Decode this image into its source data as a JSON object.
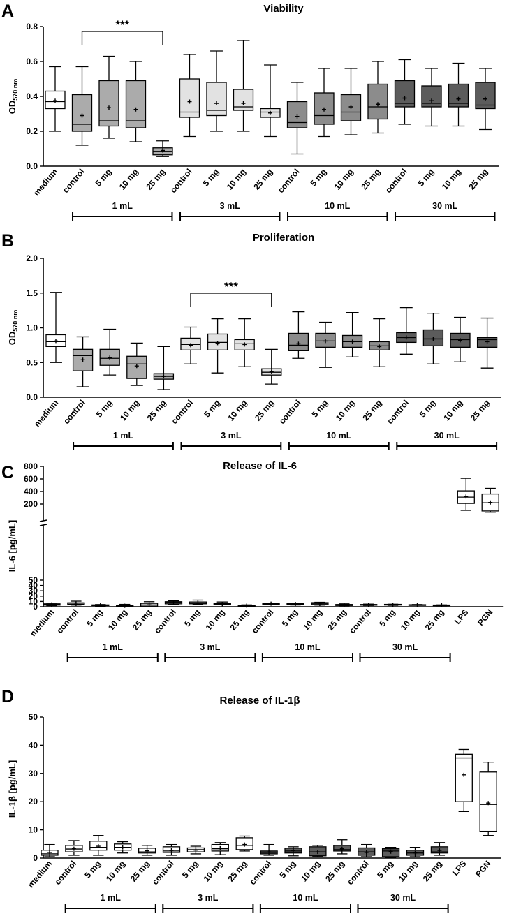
{
  "chart_data": [
    {
      "type": "boxplot",
      "panel_label": "A",
      "title": "Viability",
      "ylabel_main": "OD",
      "ylabel_sub": "570 nm",
      "ylim": [
        0,
        0.8
      ],
      "yticks": [
        "0.0",
        "0.2",
        "0.4",
        "0.6",
        "0.8"
      ],
      "categories": [
        "medium",
        "control",
        "5 mg",
        "10 mg",
        "25 mg",
        "control",
        "5 mg",
        "10 mg",
        "25 mg",
        "control",
        "5 mg",
        "10 mg",
        "25 mg",
        "control",
        "5 mg",
        "10 mg",
        "25 mg"
      ],
      "groups": [
        {
          "label": "1 mL",
          "from": 1,
          "to": 4
        },
        {
          "label": "3 mL",
          "from": 5,
          "to": 8
        },
        {
          "label": "10 mL",
          "from": 9,
          "to": 12
        },
        {
          "label": "30 mL",
          "from": 13,
          "to": 16
        }
      ],
      "significance": [
        {
          "from": 1,
          "to": 4,
          "label": "***"
        }
      ],
      "boxes": [
        {
          "min": 0.2,
          "q1": 0.33,
          "median": 0.37,
          "q3": 0.43,
          "max": 0.57,
          "mean": 0.375
        },
        {
          "min": 0.12,
          "q1": 0.2,
          "median": 0.24,
          "q3": 0.41,
          "max": 0.57,
          "mean": 0.29
        },
        {
          "min": 0.16,
          "q1": 0.23,
          "median": 0.26,
          "q3": 0.49,
          "max": 0.63,
          "mean": 0.335
        },
        {
          "min": 0.14,
          "q1": 0.22,
          "median": 0.26,
          "q3": 0.49,
          "max": 0.6,
          "mean": 0.325
        },
        {
          "min": 0.055,
          "q1": 0.065,
          "median": 0.085,
          "q3": 0.105,
          "max": 0.145,
          "mean": 0.09
        },
        {
          "min": 0.17,
          "q1": 0.28,
          "median": 0.31,
          "q3": 0.5,
          "max": 0.64,
          "mean": 0.37
        },
        {
          "min": 0.2,
          "q1": 0.29,
          "median": 0.32,
          "q3": 0.48,
          "max": 0.66,
          "mean": 0.36
        },
        {
          "min": 0.2,
          "q1": 0.32,
          "median": 0.34,
          "q3": 0.44,
          "max": 0.72,
          "mean": 0.36
        },
        {
          "min": 0.17,
          "q1": 0.28,
          "median": 0.31,
          "q3": 0.33,
          "max": 0.58,
          "mean": 0.305
        },
        {
          "min": 0.07,
          "q1": 0.22,
          "median": 0.25,
          "q3": 0.37,
          "max": 0.48,
          "mean": 0.285
        },
        {
          "min": 0.17,
          "q1": 0.24,
          "median": 0.29,
          "q3": 0.42,
          "max": 0.56,
          "mean": 0.325
        },
        {
          "min": 0.18,
          "q1": 0.26,
          "median": 0.31,
          "q3": 0.41,
          "max": 0.56,
          "mean": 0.34
        },
        {
          "min": 0.19,
          "q1": 0.27,
          "median": 0.34,
          "q3": 0.47,
          "max": 0.6,
          "mean": 0.355
        },
        {
          "min": 0.24,
          "q1": 0.34,
          "median": 0.36,
          "q3": 0.49,
          "max": 0.61,
          "mean": 0.39
        },
        {
          "min": 0.23,
          "q1": 0.34,
          "median": 0.36,
          "q3": 0.46,
          "max": 0.56,
          "mean": 0.375
        },
        {
          "min": 0.23,
          "q1": 0.34,
          "median": 0.36,
          "q3": 0.47,
          "max": 0.59,
          "mean": 0.385
        },
        {
          "min": 0.21,
          "q1": 0.33,
          "median": 0.35,
          "q3": 0.48,
          "max": 0.56,
          "mean": 0.385
        }
      ],
      "box_colors": [
        "#ffffff",
        "#ababab",
        "#ababab",
        "#ababab",
        "#ababab",
        "#e2e2e2",
        "#e2e2e2",
        "#e2e2e2",
        "#e2e2e2",
        "#8c8c8c",
        "#8c8c8c",
        "#8c8c8c",
        "#8c8c8c",
        "#5c5c5c",
        "#5c5c5c",
        "#5c5c5c",
        "#5c5c5c"
      ]
    },
    {
      "type": "boxplot",
      "panel_label": "B",
      "title": "Proliferation",
      "ylabel_main": "OD",
      "ylabel_sub": "570 nm",
      "ylim": [
        0,
        2.0
      ],
      "yticks": [
        "0.0",
        "0.5",
        "1.0",
        "1.5",
        "2.0"
      ],
      "categories": [
        "medium",
        "control",
        "5 mg",
        "10 mg",
        "25 mg",
        "control",
        "5 mg",
        "10 mg",
        "25 mg",
        "control",
        "5 mg",
        "10 mg",
        "25 mg",
        "control",
        "5 mg",
        "10 mg",
        "25 mg"
      ],
      "groups": [
        {
          "label": "1 mL",
          "from": 1,
          "to": 4
        },
        {
          "label": "3 mL",
          "from": 5,
          "to": 8
        },
        {
          "label": "10 mL",
          "from": 9,
          "to": 12
        },
        {
          "label": "30 mL",
          "from": 13,
          "to": 16
        }
      ],
      "significance": [
        {
          "from": 5,
          "to": 8,
          "label": "***"
        }
      ],
      "boxes": [
        {
          "min": 0.5,
          "q1": 0.73,
          "median": 0.8,
          "q3": 0.9,
          "max": 1.51,
          "mean": 0.81
        },
        {
          "min": 0.15,
          "q1": 0.38,
          "median": 0.6,
          "q3": 0.69,
          "max": 0.87,
          "mean": 0.54
        },
        {
          "min": 0.32,
          "q1": 0.46,
          "median": 0.56,
          "q3": 0.69,
          "max": 0.98,
          "mean": 0.57
        },
        {
          "min": 0.17,
          "q1": 0.27,
          "median": 0.48,
          "q3": 0.59,
          "max": 0.78,
          "mean": 0.45
        },
        {
          "min": 0.11,
          "q1": 0.26,
          "median": 0.3,
          "q3": 0.34,
          "max": 0.73,
          "mean": 0.3
        },
        {
          "min": 0.48,
          "q1": 0.68,
          "median": 0.76,
          "q3": 0.85,
          "max": 1.01,
          "mean": 0.75
        },
        {
          "min": 0.35,
          "q1": 0.68,
          "median": 0.79,
          "q3": 0.91,
          "max": 1.13,
          "mean": 0.78
        },
        {
          "min": 0.44,
          "q1": 0.68,
          "median": 0.77,
          "q3": 0.83,
          "max": 1.13,
          "mean": 0.76
        },
        {
          "min": 0.19,
          "q1": 0.32,
          "median": 0.36,
          "q3": 0.41,
          "max": 0.69,
          "mean": 0.37
        },
        {
          "min": 0.56,
          "q1": 0.67,
          "median": 0.75,
          "q3": 0.92,
          "max": 1.23,
          "mean": 0.77
        },
        {
          "min": 0.43,
          "q1": 0.72,
          "median": 0.81,
          "q3": 0.92,
          "max": 1.08,
          "mean": 0.81
        },
        {
          "min": 0.58,
          "q1": 0.72,
          "median": 0.8,
          "q3": 0.89,
          "max": 1.22,
          "mean": 0.8
        },
        {
          "min": 0.44,
          "q1": 0.68,
          "median": 0.74,
          "q3": 0.8,
          "max": 1.13,
          "mean": 0.73
        },
        {
          "min": 0.62,
          "q1": 0.79,
          "median": 0.86,
          "q3": 0.93,
          "max": 1.29,
          "mean": 0.86
        },
        {
          "min": 0.48,
          "q1": 0.74,
          "median": 0.84,
          "q3": 0.97,
          "max": 1.21,
          "mean": 0.84
        },
        {
          "min": 0.51,
          "q1": 0.72,
          "median": 0.83,
          "q3": 0.92,
          "max": 1.15,
          "mean": 0.82
        },
        {
          "min": 0.42,
          "q1": 0.72,
          "median": 0.83,
          "q3": 0.86,
          "max": 1.14,
          "mean": 0.8
        }
      ],
      "box_colors": [
        "#ffffff",
        "#ababab",
        "#ababab",
        "#ababab",
        "#ababab",
        "#e2e2e2",
        "#e2e2e2",
        "#e2e2e2",
        "#e2e2e2",
        "#8c8c8c",
        "#8c8c8c",
        "#8c8c8c",
        "#8c8c8c",
        "#5c5c5c",
        "#5c5c5c",
        "#5c5c5c",
        "#5c5c5c"
      ]
    },
    {
      "type": "boxplot",
      "panel_label": "C",
      "title": "Release of IL-6",
      "ylabel_main": "IL-6 [pg/mL]",
      "axis_break": true,
      "ylim_lower": [
        0,
        50
      ],
      "ylim_upper": [
        0,
        800
      ],
      "yticks_lower": [
        "0",
        "10",
        "20",
        "30",
        "40",
        "50"
      ],
      "yticks_upper": [
        "200",
        "400",
        "600",
        "800"
      ],
      "categories": [
        "medium",
        "control",
        "5 mg",
        "10 mg",
        "25 mg",
        "control",
        "5 mg",
        "10 mg",
        "25 mg",
        "control",
        "5 mg",
        "10 mg",
        "25 mg",
        "control",
        "5 mg",
        "10 mg",
        "25 mg",
        "LPS",
        "PGN"
      ],
      "groups": [
        {
          "label": "1 mL",
          "from": 1,
          "to": 4
        },
        {
          "label": "3 mL",
          "from": 5,
          "to": 8
        },
        {
          "label": "10 mL",
          "from": 9,
          "to": 12
        },
        {
          "label": "30 mL",
          "from": 13,
          "to": 16
        }
      ],
      "boxes": [
        {
          "min": 2,
          "q1": 3,
          "median": 4.5,
          "q3": 5.5,
          "max": 7,
          "mean": 4.5
        },
        {
          "min": 3,
          "q1": 3.8,
          "median": 5,
          "q3": 7.5,
          "max": 10.5,
          "mean": 5.2
        },
        {
          "min": 1.5,
          "q1": 2.2,
          "median": 3,
          "q3": 3.5,
          "max": 4.2,
          "mean": 3
        },
        {
          "min": 0.3,
          "q1": 0.8,
          "median": 1.5,
          "q3": 2.5,
          "max": 4.5,
          "mean": 1.8
        },
        {
          "min": 0.2,
          "q1": 0.4,
          "median": 3,
          "q3": 6.5,
          "max": 9.5,
          "mean": 3.5
        },
        {
          "min": 4,
          "q1": 5.5,
          "median": 8,
          "q3": 9.5,
          "max": 11,
          "mean": 7.5
        },
        {
          "min": 4.5,
          "q1": 5.5,
          "median": 7,
          "q3": 9,
          "max": 12.5,
          "mean": 7
        },
        {
          "min": 3.5,
          "q1": 4.2,
          "median": 5,
          "q3": 5.8,
          "max": 9,
          "mean": 5
        },
        {
          "min": 0.8,
          "q1": 1.2,
          "median": 2,
          "q3": 2.8,
          "max": 3.5,
          "mean": 2
        },
        {
          "min": 4.8,
          "q1": 5.2,
          "median": 5.6,
          "q3": 6,
          "max": 6.5,
          "mean": 5.8
        },
        {
          "min": 3.2,
          "q1": 4,
          "median": 5,
          "q3": 6.2,
          "max": 7,
          "mean": 5.3
        },
        {
          "min": 3,
          "q1": 3.5,
          "median": 5.5,
          "q3": 7.8,
          "max": 8.5,
          "mean": 5.3
        },
        {
          "min": 1.8,
          "q1": 2.3,
          "median": 3.5,
          "q3": 4.3,
          "max": 5.5,
          "mean": 3.6
        },
        {
          "min": 2.3,
          "q1": 2.9,
          "median": 3.8,
          "q3": 4.3,
          "max": 5,
          "mean": 3.8
        },
        {
          "min": 2.5,
          "q1": 3.3,
          "median": 4.2,
          "q3": 4.5,
          "max": 4.8,
          "mean": 4
        },
        {
          "min": 2.8,
          "q1": 3,
          "median": 3.5,
          "q3": 3.8,
          "max": 4.2,
          "mean": 3.5
        },
        {
          "min": 2,
          "q1": 2.2,
          "median": 3,
          "q3": 3.2,
          "max": 3.5,
          "mean": 3
        },
        {
          "min": 100,
          "q1": 210,
          "median": 310,
          "q3": 410,
          "max": 610,
          "mean": 320
        },
        {
          "min": 70,
          "q1": 90,
          "median": 220,
          "q3": 360,
          "max": 450,
          "mean": 225
        }
      ],
      "box_colors": [
        "#ffffff",
        "#ababab",
        "#ababab",
        "#ababab",
        "#ababab",
        "#e2e2e2",
        "#e2e2e2",
        "#e2e2e2",
        "#e2e2e2",
        "#8c8c8c",
        "#8c8c8c",
        "#8c8c8c",
        "#8c8c8c",
        "#5c5c5c",
        "#5c5c5c",
        "#5c5c5c",
        "#5c5c5c",
        "#ffffff",
        "#ffffff"
      ]
    },
    {
      "type": "boxplot",
      "panel_label": "D",
      "title": "Release of IL-1β",
      "ylabel_main": "IL-1β [pg/mL]",
      "ylim": [
        0,
        50
      ],
      "yticks": [
        "0",
        "10",
        "20",
        "30",
        "40",
        "50"
      ],
      "categories": [
        "medium",
        "control",
        "5 mg",
        "10 mg",
        "25 mg",
        "control",
        "5 mg",
        "10 mg",
        "25 mg",
        "control",
        "5 mg",
        "10 mg",
        "25 mg",
        "control",
        "5 mg",
        "10 mg",
        "25 mg",
        "LPS",
        "PGN"
      ],
      "groups": [
        {
          "label": "1 mL",
          "from": 1,
          "to": 4
        },
        {
          "label": "3 mL",
          "from": 5,
          "to": 8
        },
        {
          "label": "10 mL",
          "from": 9,
          "to": 12
        },
        {
          "label": "30 mL",
          "from": 13,
          "to": 16
        }
      ],
      "boxes": [
        {
          "min": 0.5,
          "q1": 1,
          "median": 1.5,
          "q3": 2.8,
          "max": 4.8,
          "mean": 2
        },
        {
          "min": 1,
          "q1": 2.2,
          "median": 3.2,
          "q3": 4.5,
          "max": 6.2,
          "mean": 3.3
        },
        {
          "min": 1,
          "q1": 2.8,
          "median": 3.8,
          "q3": 6,
          "max": 8,
          "mean": 4.2
        },
        {
          "min": 1.8,
          "q1": 2.8,
          "median": 3.8,
          "q3": 5,
          "max": 5.8,
          "mean": 3.8
        },
        {
          "min": 1,
          "q1": 1.8,
          "median": 2.2,
          "q3": 3.5,
          "max": 4.5,
          "mean": 2.6
        },
        {
          "min": 1,
          "q1": 2,
          "median": 2.5,
          "q3": 4,
          "max": 4.8,
          "mean": 2.8
        },
        {
          "min": 1.5,
          "q1": 2.2,
          "median": 3,
          "q3": 3.6,
          "max": 4.2,
          "mean": 2.8
        },
        {
          "min": 1.2,
          "q1": 2.5,
          "median": 3.3,
          "q3": 4.8,
          "max": 5.5,
          "mean": 3.5
        },
        {
          "min": 2.5,
          "q1": 3,
          "median": 4.5,
          "q3": 7.2,
          "max": 7.8,
          "mean": 4.8
        },
        {
          "min": 1,
          "q1": 1.5,
          "median": 2,
          "q3": 2.5,
          "max": 4.8,
          "mean": 2.1
        },
        {
          "min": 0.8,
          "q1": 1.8,
          "median": 2.5,
          "q3": 3.5,
          "max": 4,
          "mean": 2.6
        },
        {
          "min": 0.5,
          "q1": 0.8,
          "median": 2.2,
          "q3": 4,
          "max": 4.5,
          "mean": 2.2
        },
        {
          "min": 1.5,
          "q1": 2.5,
          "median": 3,
          "q3": 4.5,
          "max": 6.5,
          "mean": 3.3
        },
        {
          "min": 0.5,
          "q1": 1,
          "median": 2.2,
          "q3": 3.6,
          "max": 4.8,
          "mean": 2
        },
        {
          "min": 0.2,
          "q1": 0.5,
          "median": 2.5,
          "q3": 3.3,
          "max": 3.8,
          "mean": 2.3
        },
        {
          "min": 0.5,
          "q1": 1,
          "median": 1.8,
          "q3": 2.8,
          "max": 3.8,
          "mean": 1.8
        },
        {
          "min": 1,
          "q1": 1.8,
          "median": 2.2,
          "q3": 4,
          "max": 5.5,
          "mean": 2.7
        },
        {
          "min": 16.5,
          "q1": 20,
          "median": 35.5,
          "q3": 36.8,
          "max": 38.5,
          "mean": 29.5
        },
        {
          "min": 8,
          "q1": 9.5,
          "median": 19,
          "q3": 30.5,
          "max": 34,
          "mean": 19.5
        }
      ],
      "box_colors": [
        "#ffffff",
        "#ffffff",
        "#ffffff",
        "#ffffff",
        "#ffffff",
        "#ffffff",
        "#ffffff",
        "#ffffff",
        "#ffffff",
        "#5c5c5c",
        "#5c5c5c",
        "#5c5c5c",
        "#5c5c5c",
        "#5c5c5c",
        "#5c5c5c",
        "#5c5c5c",
        "#5c5c5c",
        "#ffffff",
        "#ffffff"
      ]
    }
  ]
}
